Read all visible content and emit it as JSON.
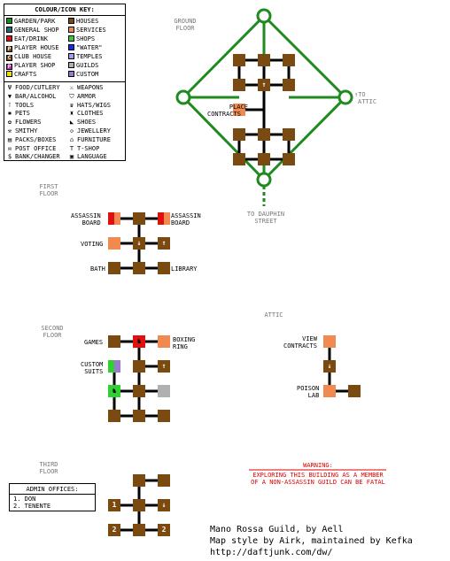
{
  "key": {
    "title": "COLOUR/ICON KEY:",
    "colours": [
      {
        "label": "GARDEN/PARK",
        "color": "#1f8a1f",
        "col": 0,
        "row": 0
      },
      {
        "label": "GENERAL SHOP",
        "color": "#1f6f6f",
        "col": 0,
        "row": 1
      },
      {
        "label": "EAT/DRINK",
        "color": "#e01010",
        "col": 0,
        "row": 2
      },
      {
        "label": "PLAYER HOUSE",
        "color": "#7a4a10",
        "letter": "P",
        "col": 0,
        "row": 3
      },
      {
        "label": "CLUB HOUSE",
        "color": "#7a4a10",
        "letter": "C",
        "col": 0,
        "row": 4
      },
      {
        "label": "PLAYER SHOP",
        "color": "#c020c0",
        "letter": "P",
        "col": 0,
        "row": 5
      },
      {
        "label": "CRAFTS",
        "color": "#f0e000",
        "col": 0,
        "row": 6
      },
      {
        "label": "HOUSES",
        "color": "#7a4a10",
        "col": 1,
        "row": 0
      },
      {
        "label": "SERVICES",
        "color": "#f08a50",
        "col": 1,
        "row": 1
      },
      {
        "label": "SHOPS",
        "color": "#30d030",
        "col": 1,
        "row": 2
      },
      {
        "label": "\"WATER\"",
        "color": "#1030e0",
        "col": 1,
        "row": 3
      },
      {
        "label": "TEMPLES",
        "color": "#a0a0f0",
        "col": 1,
        "row": 4
      },
      {
        "label": "GUILDS",
        "color": "#b0b0b0",
        "col": 1,
        "row": 5
      },
      {
        "label": "CUSTOM",
        "color": "#9a7ad0",
        "col": 1,
        "row": 6
      }
    ],
    "icons": [
      {
        "label": "FOOD/CUTLERY",
        "icon": "Ψ",
        "col": 0,
        "row": 0
      },
      {
        "label": "BAR/ALCOHOL",
        "icon": "▼",
        "col": 0,
        "row": 1
      },
      {
        "label": "TOOLS",
        "icon": "⊺",
        "col": 0,
        "row": 2
      },
      {
        "label": "PETS",
        "icon": "✱",
        "col": 0,
        "row": 3
      },
      {
        "label": "FLOWERS",
        "icon": "✿",
        "col": 0,
        "row": 4
      },
      {
        "label": "SMITHY",
        "icon": "⚒",
        "col": 0,
        "row": 5
      },
      {
        "label": "PACKS/BOXES",
        "icon": "▤",
        "col": 0,
        "row": 6
      },
      {
        "label": "POST OFFICE",
        "icon": "✉",
        "col": 0,
        "row": 7
      },
      {
        "label": "BANK/CHANGER",
        "icon": "$",
        "col": 0,
        "row": 8
      },
      {
        "label": "WEAPONS",
        "icon": "⚔",
        "col": 1,
        "row": 0
      },
      {
        "label": "ARMOR",
        "icon": "⛉",
        "col": 1,
        "row": 1
      },
      {
        "label": "HATS/WIGS",
        "icon": "♛",
        "col": 1,
        "row": 2
      },
      {
        "label": "CLOTHES",
        "icon": "♜",
        "col": 1,
        "row": 3
      },
      {
        "label": "SHOES",
        "icon": "◣",
        "col": 1,
        "row": 4
      },
      {
        "label": "JEWELLERY",
        "icon": "◇",
        "col": 1,
        "row": 5
      },
      {
        "label": "FURNITURE",
        "icon": "⌂",
        "col": 1,
        "row": 6
      },
      {
        "label": "T-SHOP",
        "icon": "T",
        "col": 1,
        "row": 7
      },
      {
        "label": "LANGUAGE",
        "icon": "▣",
        "col": 1,
        "row": 8
      }
    ]
  },
  "colors": {
    "house": "#7a4a10",
    "service": "#f08a50",
    "eat": "#e01010",
    "shop": "#30d030",
    "guild": "#b0b0b0",
    "garden": "#1f8a1f"
  },
  "floors": {
    "ground": {
      "title_1": "GROUND",
      "title_2": "FLOOR",
      "place_1": "PLACE",
      "place_2": "CONTRACTS",
      "attic_1": "TO",
      "attic_2": "ATTIC",
      "street_1": "TO DAUPHIN",
      "street_2": "STREET"
    },
    "first": {
      "title_1": "FIRST",
      "title_2": "FLOOR",
      "assassin_1": "ASSASSIN",
      "assassin_2": "BOARD",
      "voting": "VOTING",
      "bath": "BATH",
      "library": "LIBRARY"
    },
    "second": {
      "title_1": "SECOND",
      "title_2": "FLOOR",
      "games": "GAMES",
      "boxing_1": "BOXING",
      "boxing_2": "RING",
      "custom_1": "CUSTOM",
      "custom_2": "SUITS"
    },
    "attic": {
      "title": "ATTIC",
      "view_1": "VIEW",
      "view_2": "CONTRACTS",
      "poison_1": "POISON",
      "poison_2": "LAB"
    },
    "third": {
      "title_1": "THIRD",
      "title_2": "FLOOR",
      "room_1": "1",
      "room_2": "2"
    }
  },
  "admin": {
    "title": "ADMIN OFFICES:",
    "items": [
      "1. DON",
      "2. TENENTE"
    ]
  },
  "warning": {
    "title": "WARNING:",
    "line1": "EXPLORING THIS BUILDING AS A MEMBER",
    "line2": "OF A NON-ASSASSIN GUILD CAN BE FATAL"
  },
  "credits": {
    "line1": "Mano Rossa Guild, by Aell",
    "line2": "Map style by Airk, maintained by Kefka",
    "line3": "http://daftjunk.com/dw/"
  }
}
